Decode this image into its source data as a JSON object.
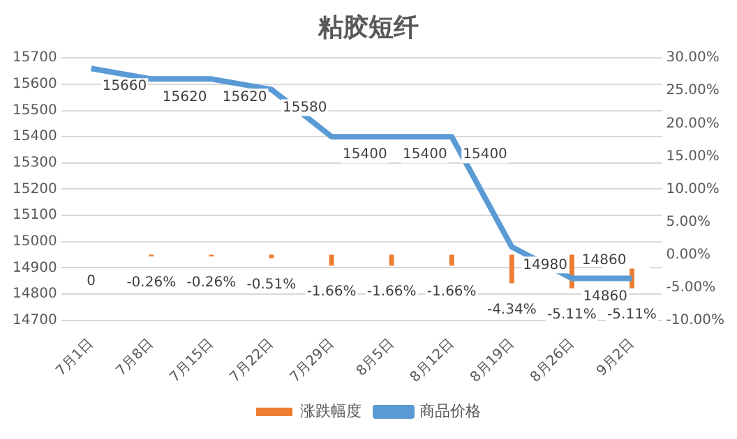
{
  "chart_data": {
    "type": "bar",
    "title": "粘胶短纤",
    "categories": [
      "7月1日",
      "7月8日",
      "7月15日",
      "7月22日",
      "7月29日",
      "8月5日",
      "8月12日",
      "8月19日",
      "8月26日",
      "9月2日"
    ],
    "series": [
      {
        "name": "涨跌幅度",
        "axis": "y2",
        "color": "#ed7d31",
        "values": [
          0,
          -0.26,
          -0.26,
          -0.51,
          -1.66,
          -1.66,
          -1.66,
          -4.34,
          -5.11,
          -5.11
        ],
        "value_labels": [
          "0",
          "-0.26%",
          "-0.26%",
          "-0.51%",
          "-1.66%",
          "-1.66%",
          "-1.66%",
          "-4.34%",
          "-5.11%",
          "-5.11%"
        ]
      },
      {
        "name": "商品价格",
        "type": "line",
        "color": "#5b9bd5",
        "values": [
          15660,
          15620,
          15620,
          15580,
          15400,
          15400,
          15400,
          14980,
          14860,
          14860
        ],
        "value_labels": [
          "15660",
          "15620",
          "15620",
          "15580",
          "15400",
          "15400",
          "15400",
          "14980",
          "14860",
          "14860"
        ]
      }
    ],
    "ylim": [
      14700,
      15700
    ],
    "yticks": [
      14700,
      14800,
      14900,
      15000,
      15100,
      15200,
      15300,
      15400,
      15500,
      15600,
      15700
    ],
    "y2lim": [
      -10,
      30
    ],
    "y2ticks": [
      {
        "value": -10,
        "label": "-10.00%"
      },
      {
        "value": -5,
        "label": "-5.00%"
      },
      {
        "value": 0,
        "label": "0.00%"
      },
      {
        "value": 5,
        "label": "5.00%"
      },
      {
        "value": 10,
        "label": "10.00%"
      },
      {
        "value": 15,
        "label": "15.00%"
      },
      {
        "value": 20,
        "label": "20.00%"
      },
      {
        "value": 25,
        "label": "25.00%"
      },
      {
        "value": 30,
        "label": "30.00%"
      }
    ],
    "grid": "y",
    "legend": "bottom",
    "marker": "none",
    "line_style": "solid"
  }
}
